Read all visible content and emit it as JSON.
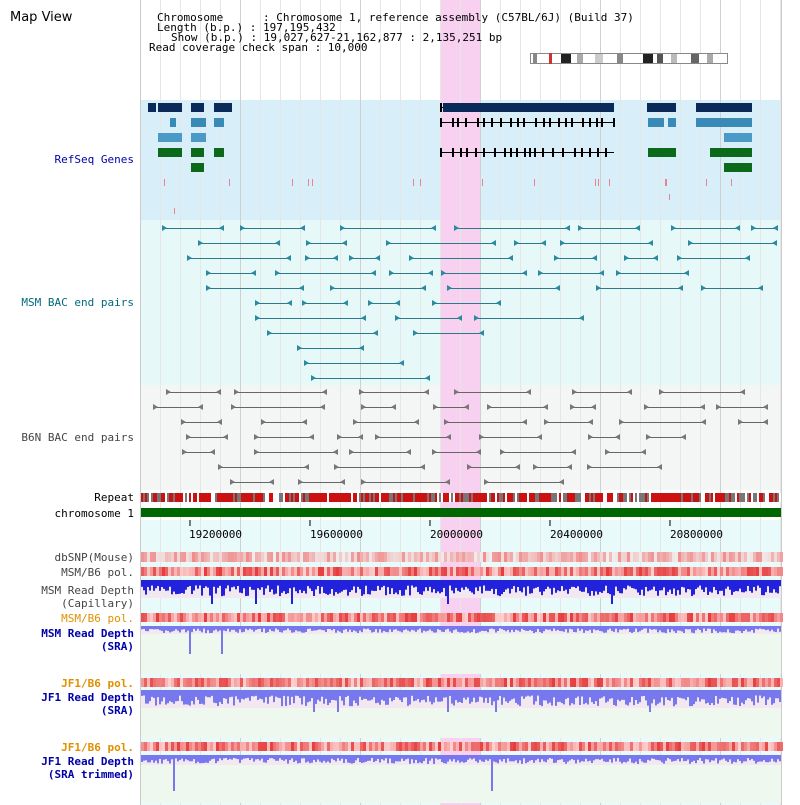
{
  "title": "Map View",
  "info": {
    "chromosome": "Chromosome      : Chromosome 1, reference assembly (C57BL/6J) (Build 37)",
    "length": "Length (b.p.) : 197,195,432",
    "show": "Show (b.p.) : 19,027,627-21,162,877 : 2,135,251 bp",
    "coverage": "Read coverage check span : 10,000"
  },
  "tracks": {
    "refseq": "RefSeq Genes",
    "msm_bac": "MSM BAC end pairs",
    "b6n_bac": "B6N BAC end pairs",
    "repeat": "Repeat",
    "chromosome": "chromosome 1",
    "dbsnp": "dbSNP(Mouse)",
    "msm_b6_pol_1": "MSM/B6 pol.",
    "msm_read_depth_cap_1": "MSM Read Depth",
    "msm_read_depth_cap_2": "(Capillary)",
    "msm_b6_pol_2": "MSM/B6 pol.",
    "msm_read_depth_sra_1": "MSM Read Depth",
    "msm_read_depth_sra_2": "(SRA)",
    "jf1_b6_pol_1": "JF1/B6 pol.",
    "jf1_read_depth_sra_1": "JF1 Read Depth",
    "jf1_read_depth_sra_2": "(SRA)",
    "jf1_b6_pol_2": "JF1/B6 pol.",
    "jf1_read_depth_trim_1": "JF1 Read Depth",
    "jf1_read_depth_trim_2": "(SRA trimmed)"
  },
  "axis": {
    "ticks": [
      "19200000",
      "19600000",
      "20000000",
      "20400000",
      "20800000"
    ]
  },
  "colors": {
    "highlight": "#f8d0f0",
    "refseq_bg": "#d8eef8",
    "msm_bg": "#e6f8f8",
    "b6n_bg": "#f4f6f6",
    "chromosome_bar": "#006600",
    "label_blue": "#0000aa",
    "label_teal": "#006a7a",
    "label_orange": "#e09000",
    "label_gray": "#444444"
  }
}
